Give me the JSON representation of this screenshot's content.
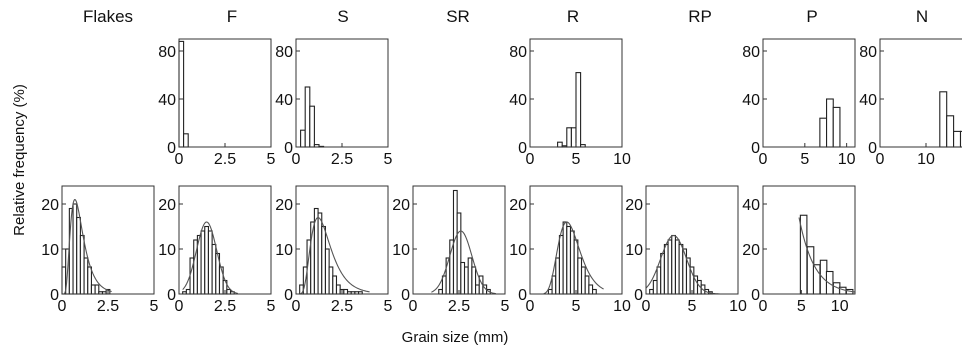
{
  "figure": {
    "ylabel": "Relative frequency (%)",
    "xlabel": "Grain size (mm)",
    "column_titles": [
      "Flakes",
      "F",
      "S",
      "SR",
      "R",
      "RP",
      "P",
      "N"
    ]
  },
  "colors": {
    "bar_fill": "#ffffff",
    "bar_stroke": "#222222",
    "curve": "#555555",
    "frame": "#333333"
  },
  "chart_data": [
    {
      "type": "bar",
      "id": "top-F",
      "column_title": "F",
      "xlim": [
        0,
        5
      ],
      "ylim": [
        0,
        90
      ],
      "xticks": [
        0,
        2.5,
        5
      ],
      "xtick_labels": [
        "0",
        "2.5",
        "5"
      ],
      "yticks": [
        0,
        40,
        80
      ],
      "ytick_labels": [
        "0",
        "40",
        "80"
      ],
      "bin_width": 0.25,
      "bins": [
        [
          0.125,
          88
        ],
        [
          0.375,
          11
        ]
      ]
    },
    {
      "type": "bar",
      "id": "top-S",
      "column_title": "S",
      "xlim": [
        0,
        5
      ],
      "ylim": [
        0,
        90
      ],
      "xticks": [
        0,
        2.5,
        5
      ],
      "xtick_labels": [
        "0",
        "2.5",
        "5"
      ],
      "yticks": [
        0,
        40,
        80
      ],
      "ytick_labels": [
        "0",
        "40",
        "80"
      ],
      "bin_width": 0.25,
      "bins": [
        [
          0.375,
          14
        ],
        [
          0.625,
          50
        ],
        [
          0.875,
          34
        ],
        [
          1.125,
          2
        ],
        [
          1.375,
          0.5
        ]
      ]
    },
    {
      "type": "bar",
      "id": "top-R",
      "column_title": "R",
      "xlim": [
        0,
        10
      ],
      "ylim": [
        0,
        90
      ],
      "xticks": [
        0,
        5,
        10
      ],
      "xtick_labels": [
        "0",
        "5",
        "10"
      ],
      "yticks": [
        0,
        40,
        80
      ],
      "ytick_labels": [
        "0",
        "40",
        "80"
      ],
      "bin_width": 0.5,
      "bins": [
        [
          3.25,
          4
        ],
        [
          3.75,
          1
        ],
        [
          4.25,
          16
        ],
        [
          4.75,
          16
        ],
        [
          5.25,
          62
        ],
        [
          5.75,
          2
        ]
      ]
    },
    {
      "type": "bar",
      "id": "top-P",
      "column_title": "P",
      "xlim": [
        0,
        11
      ],
      "ylim": [
        0,
        90
      ],
      "xticks": [
        0,
        5,
        10
      ],
      "xtick_labels": [
        "0",
        "5",
        "10"
      ],
      "yticks": [
        0,
        40,
        80
      ],
      "ytick_labels": [
        "0",
        "40",
        "80"
      ],
      "bin_width": 0.8,
      "bins": [
        [
          7.2,
          24
        ],
        [
          8.0,
          40
        ],
        [
          8.8,
          33
        ]
      ]
    },
    {
      "type": "bar",
      "id": "top-N",
      "column_title": "N",
      "xlim": [
        0,
        20
      ],
      "ylim": [
        0,
        90
      ],
      "xticks": [
        0,
        10,
        20
      ],
      "xtick_labels": [
        "0",
        "10",
        "20"
      ],
      "yticks": [
        0,
        40,
        80
      ],
      "ytick_labels": [
        "0",
        "40",
        "80"
      ],
      "bin_width": 1.5,
      "bins": [
        [
          13.75,
          46
        ],
        [
          15.25,
          26
        ],
        [
          16.75,
          13
        ],
        [
          18.25,
          13
        ]
      ]
    },
    {
      "type": "bar",
      "id": "bot-Flakes",
      "column_title": "Flakes",
      "xlim": [
        0,
        5
      ],
      "ylim": [
        0,
        24
      ],
      "xticks": [
        0,
        2.5,
        5
      ],
      "xtick_labels": [
        "0",
        "2.5",
        "5"
      ],
      "yticks": [
        0,
        10,
        20
      ],
      "ytick_labels": [
        "0",
        "10",
        "20"
      ],
      "bin_width": 0.2,
      "bins": [
        [
          0.1,
          6
        ],
        [
          0.3,
          10
        ],
        [
          0.5,
          19
        ],
        [
          0.7,
          20
        ],
        [
          0.9,
          17
        ],
        [
          1.1,
          13
        ],
        [
          1.3,
          8
        ],
        [
          1.5,
          6
        ],
        [
          1.7,
          2
        ],
        [
          1.9,
          2
        ],
        [
          2.1,
          0.5
        ],
        [
          2.3,
          0.5
        ],
        [
          2.5,
          1
        ]
      ],
      "fit_curve": {
        "type": "lognormal",
        "peak_x": 0.7,
        "peak_y": 21,
        "sigma": 0.5,
        "x_range": [
          0.05,
          2.7
        ]
      }
    },
    {
      "type": "bar",
      "id": "bot-F",
      "column_title": "F",
      "xlim": [
        0,
        5
      ],
      "ylim": [
        0,
        24
      ],
      "xticks": [
        0,
        2.5,
        5
      ],
      "xtick_labels": [
        "0",
        "2.5",
        "5"
      ],
      "yticks": [
        0,
        10,
        20
      ],
      "ytick_labels": [
        "0",
        "10",
        "20"
      ],
      "bin_width": 0.2,
      "bins": [
        [
          0.3,
          0.5
        ],
        [
          0.5,
          1
        ],
        [
          0.7,
          8
        ],
        [
          0.9,
          12
        ],
        [
          1.1,
          13
        ],
        [
          1.3,
          14
        ],
        [
          1.5,
          15
        ],
        [
          1.7,
          14
        ],
        [
          1.9,
          11
        ],
        [
          2.1,
          9
        ],
        [
          2.3,
          6
        ],
        [
          2.5,
          3
        ],
        [
          2.7,
          1
        ],
        [
          2.9,
          0.5
        ]
      ],
      "fit_curve": {
        "type": "normal",
        "peak_x": 1.5,
        "peak_y": 16,
        "sigma": 0.55,
        "x_range": [
          0.2,
          3.2
        ]
      }
    },
    {
      "type": "bar",
      "id": "bot-S",
      "column_title": "S",
      "xlim": [
        0,
        5
      ],
      "ylim": [
        0,
        24
      ],
      "xticks": [
        0,
        2.5,
        5
      ],
      "xtick_labels": [
        "0",
        "2.5",
        "5"
      ],
      "yticks": [
        0,
        10,
        20
      ],
      "ytick_labels": [
        "0",
        "10",
        "20"
      ],
      "bin_width": 0.2,
      "bins": [
        [
          0.3,
          2
        ],
        [
          0.5,
          6
        ],
        [
          0.7,
          12
        ],
        [
          0.9,
          16
        ],
        [
          1.1,
          19
        ],
        [
          1.3,
          18
        ],
        [
          1.5,
          15
        ],
        [
          1.7,
          10
        ],
        [
          1.9,
          6
        ],
        [
          2.1,
          4
        ],
        [
          2.3,
          2
        ],
        [
          2.5,
          1
        ],
        [
          2.7,
          1
        ],
        [
          2.9,
          0.5
        ],
        [
          3.1,
          0.5
        ],
        [
          3.3,
          0.5
        ],
        [
          3.5,
          0.5
        ]
      ],
      "fit_curve": {
        "type": "lognormal",
        "peak_x": 1.2,
        "peak_y": 17,
        "sigma": 0.45,
        "x_range": [
          0.15,
          4.0
        ]
      }
    },
    {
      "type": "bar",
      "id": "bot-SR",
      "column_title": "SR",
      "xlim": [
        0,
        5
      ],
      "ylim": [
        0,
        24
      ],
      "xticks": [
        0,
        2.5,
        5
      ],
      "xtick_labels": [
        "0",
        "2.5",
        "5"
      ],
      "yticks": [
        0,
        10,
        20
      ],
      "ytick_labels": [
        "0",
        "10",
        "20"
      ],
      "bin_width": 0.2,
      "bins": [
        [
          1.5,
          1
        ],
        [
          1.7,
          4
        ],
        [
          1.9,
          8
        ],
        [
          2.1,
          12
        ],
        [
          2.3,
          23
        ],
        [
          2.5,
          18
        ],
        [
          2.7,
          7
        ],
        [
          2.9,
          6
        ],
        [
          3.1,
          8
        ],
        [
          3.3,
          6
        ],
        [
          3.5,
          2
        ],
        [
          3.7,
          4
        ],
        [
          3.9,
          2
        ],
        [
          4.1,
          1
        ]
      ],
      "fit_curve": {
        "type": "normal",
        "peak_x": 2.6,
        "peak_y": 14,
        "sigma": 0.6,
        "x_range": [
          1.0,
          4.5
        ]
      }
    },
    {
      "type": "bar",
      "id": "bot-R",
      "column_title": "R",
      "xlim": [
        0,
        10
      ],
      "ylim": [
        0,
        24
      ],
      "xticks": [
        0,
        5,
        10
      ],
      "xtick_labels": [
        "0",
        "5",
        "10"
      ],
      "yticks": [
        0,
        10,
        20
      ],
      "ytick_labels": [
        "0",
        "10",
        "20"
      ],
      "bin_width": 0.4,
      "bins": [
        [
          2.2,
          1
        ],
        [
          2.6,
          4
        ],
        [
          3.0,
          8
        ],
        [
          3.4,
          13
        ],
        [
          3.8,
          16
        ],
        [
          4.2,
          15
        ],
        [
          4.6,
          14
        ],
        [
          5.0,
          12
        ],
        [
          5.4,
          8
        ],
        [
          5.8,
          6
        ],
        [
          6.2,
          4
        ],
        [
          6.6,
          2
        ],
        [
          7.0,
          1
        ]
      ],
      "fit_curve": {
        "type": "lognormal",
        "peak_x": 4.0,
        "peak_y": 16,
        "sigma": 0.3,
        "x_range": [
          1.5,
          8.0
        ]
      }
    },
    {
      "type": "bar",
      "id": "bot-RP",
      "column_title": "RP",
      "xlim": [
        0,
        10
      ],
      "ylim": [
        0,
        24
      ],
      "xticks": [
        0,
        5,
        10
      ],
      "xtick_labels": [
        "0",
        "5",
        "10"
      ],
      "yticks": [
        0,
        10,
        20
      ],
      "ytick_labels": [
        "0",
        "10",
        "20"
      ],
      "bin_width": 0.4,
      "bins": [
        [
          0.6,
          1
        ],
        [
          1.0,
          3
        ],
        [
          1.4,
          6
        ],
        [
          1.8,
          9
        ],
        [
          2.2,
          11
        ],
        [
          2.6,
          12
        ],
        [
          3.0,
          13
        ],
        [
          3.4,
          12
        ],
        [
          3.8,
          11
        ],
        [
          4.2,
          10
        ],
        [
          4.6,
          8
        ],
        [
          5.0,
          6
        ],
        [
          5.4,
          4
        ],
        [
          5.8,
          3
        ],
        [
          6.2,
          2
        ],
        [
          6.6,
          1
        ],
        [
          7.0,
          0.5
        ]
      ],
      "fit_curve": {
        "type": "normal",
        "peak_x": 3.0,
        "peak_y": 13,
        "sigma": 1.4,
        "x_range": [
          0.0,
          8.0
        ]
      }
    },
    {
      "type": "bar",
      "id": "bot-P",
      "column_title": "P",
      "xlim": [
        0,
        12
      ],
      "ylim": [
        0,
        48
      ],
      "xticks": [
        0,
        5,
        10
      ],
      "xtick_labels": [
        "0",
        "5",
        "10"
      ],
      "yticks": [
        0,
        20,
        40
      ],
      "ytick_labels": [
        "0",
        "20",
        "40"
      ],
      "bin_width": 0.85,
      "bins": [
        [
          5.3,
          35
        ],
        [
          6.2,
          21
        ],
        [
          7.0,
          13
        ],
        [
          7.9,
          15
        ],
        [
          8.7,
          10
        ],
        [
          9.6,
          5
        ],
        [
          10.4,
          3
        ],
        [
          11.3,
          2
        ]
      ],
      "fit_curve": {
        "type": "exp_decay",
        "start_x": 4.7,
        "start_y": 34,
        "rate": 0.5,
        "x_range": [
          4.7,
          12.0
        ]
      }
    }
  ]
}
